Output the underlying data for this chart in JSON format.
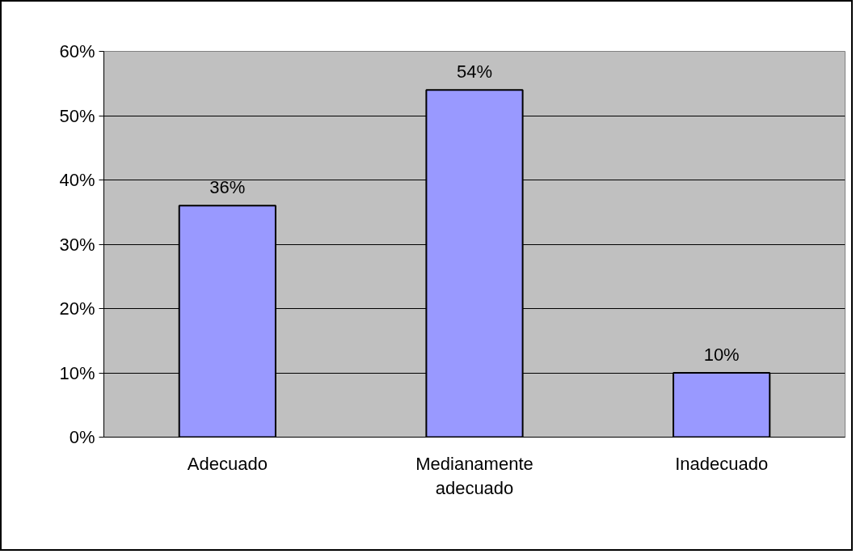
{
  "chart_data": {
    "type": "bar",
    "categories": [
      "Adecuado",
      "Medianamente adecuado",
      "Inadecuado"
    ],
    "values": [
      36,
      54,
      10
    ],
    "value_labels": [
      "36%",
      "54%",
      "10%"
    ],
    "color": "#9999ff",
    "ylim": [
      0,
      60
    ],
    "yticks": [
      {
        "value": 0,
        "label": "0%"
      },
      {
        "value": 10,
        "label": "10%"
      },
      {
        "value": 20,
        "label": "20%"
      },
      {
        "value": 30,
        "label": "30%"
      },
      {
        "value": 40,
        "label": "40%"
      },
      {
        "value": 50,
        "label": "50%"
      },
      {
        "value": 60,
        "label": "60%"
      }
    ],
    "grid": "y"
  }
}
